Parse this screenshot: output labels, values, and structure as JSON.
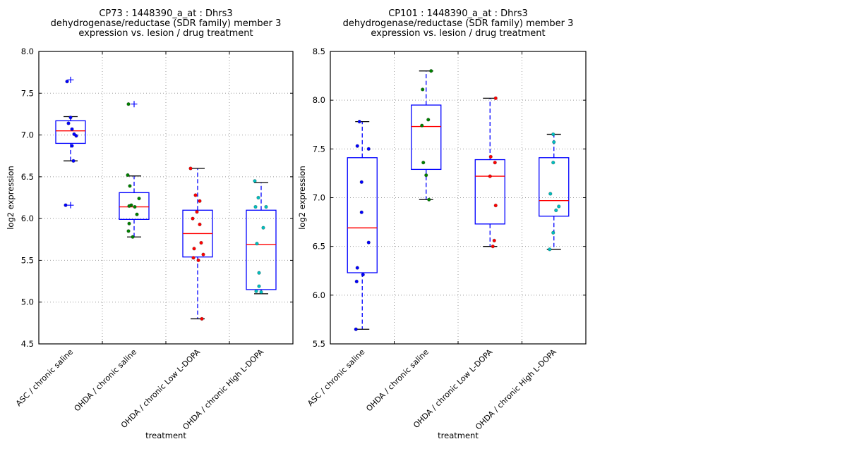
{
  "figure": {
    "background": "#ffffff",
    "kind": "boxplot-with-scatter, 2 panels"
  },
  "style": {
    "box_color": "#0000ff",
    "median_color": "#ff0000",
    "whisker_color": "#0000ff",
    "cap_color": "#000000",
    "flier_color": "#0000ff",
    "grid_color": "#999999",
    "axis_color": "#000000",
    "text_color": "#000000",
    "group_point_colors": [
      "#0000ff",
      "#008000",
      "#ff0000",
      "#00bfbf"
    ]
  },
  "chart_data": [
    {
      "type": "boxplot-scatter",
      "name": "CP73",
      "title_lines": [
        "CP73 : 1448390_a_at : Dhrs3",
        "dehydrogenase/reductase (SDR family) member 3",
        "expression vs. lesion / drug treatment"
      ],
      "xlabel": "treatment",
      "ylabel": "log2 expression",
      "ylim": [
        4.5,
        8.0
      ],
      "ytick_step": 0.5,
      "grid": true,
      "categories": [
        "ASC / chronic saline",
        "OHDA / chronic saline",
        "OHDA / chronic Low L-DOPA",
        "OHDA / chronic High L-DOPA"
      ],
      "groups": [
        {
          "label": "ASC / chronic saline",
          "point_color": "#0000ff",
          "points": [
            [
              7.64,
              -5
            ],
            [
              7.21,
              0
            ],
            [
              7.14,
              -3
            ],
            [
              7.07,
              2
            ],
            [
              7.01,
              5
            ],
            [
              6.99,
              8
            ],
            [
              6.87,
              2
            ],
            [
              6.69,
              4
            ],
            [
              6.16,
              -7
            ]
          ],
          "box": {
            "q1": 6.9,
            "median": 7.05,
            "q3": 7.17,
            "whisker_low": 6.69,
            "whisker_high": 7.22
          },
          "fliers": [
            7.66,
            6.16
          ]
        },
        {
          "label": "OHDA / chronic saline",
          "point_color": "#008000",
          "points": [
            [
              7.37,
              -8
            ],
            [
              6.52,
              -9
            ],
            [
              6.39,
              -6
            ],
            [
              6.24,
              7
            ],
            [
              6.16,
              -4
            ],
            [
              6.15,
              -7
            ],
            [
              6.14,
              1
            ],
            [
              6.05,
              4
            ],
            [
              5.94,
              -7
            ],
            [
              5.85,
              -8
            ],
            [
              5.78,
              -2
            ]
          ],
          "box": {
            "q1": 5.99,
            "median": 6.14,
            "q3": 6.31,
            "whisker_low": 5.78,
            "whisker_high": 6.51
          },
          "fliers": [
            7.37
          ]
        },
        {
          "label": "OHDA / chronic Low L-DOPA",
          "point_color": "#ff0000",
          "points": [
            [
              6.6,
              -10
            ],
            [
              6.28,
              -3
            ],
            [
              6.21,
              3
            ],
            [
              6.08,
              -1
            ],
            [
              6.0,
              -7
            ],
            [
              5.93,
              3
            ],
            [
              5.71,
              5
            ],
            [
              5.64,
              -5
            ],
            [
              5.57,
              8
            ],
            [
              5.53,
              -6
            ],
            [
              5.5,
              1
            ],
            [
              4.8,
              6
            ]
          ],
          "box": {
            "q1": 5.54,
            "median": 5.82,
            "q3": 6.1,
            "whisker_low": 4.8,
            "whisker_high": 6.6
          },
          "fliers": []
        },
        {
          "label": "OHDA / chronic High L-DOPA",
          "point_color": "#00bfbf",
          "points": [
            [
              6.45,
              -9
            ],
            [
              6.25,
              -4
            ],
            [
              6.14,
              -8
            ],
            [
              6.14,
              7
            ],
            [
              5.89,
              3
            ],
            [
              5.7,
              -6
            ],
            [
              5.35,
              -3
            ],
            [
              5.19,
              -3
            ],
            [
              5.13,
              -7
            ],
            [
              5.12,
              0
            ]
          ],
          "box": {
            "q1": 5.15,
            "median": 5.69,
            "q3": 6.1,
            "whisker_low": 5.1,
            "whisker_high": 6.43
          },
          "fliers": []
        }
      ]
    },
    {
      "type": "boxplot-scatter",
      "name": "CP101",
      "title_lines": [
        "CP101 : 1448390_a_at : Dhrs3",
        "dehydrogenase/reductase (SDR family) member 3",
        "expression vs. lesion / drug treatment"
      ],
      "xlabel": "treatment",
      "ylabel": "log2 expression",
      "ylim": [
        5.5,
        8.5
      ],
      "ytick_step": 0.5,
      "grid": true,
      "categories": [
        "ASC / chronic saline",
        "OHDA / chronic saline",
        "OHDA / chronic Low L-DOPA",
        "OHDA / chronic High L-DOPA"
      ],
      "groups": [
        {
          "label": "ASC / chronic saline",
          "point_color": "#0000ff",
          "points": [
            [
              7.78,
              -4
            ],
            [
              7.53,
              -7
            ],
            [
              7.5,
              9
            ],
            [
              7.16,
              -1
            ],
            [
              6.85,
              -1
            ],
            [
              6.54,
              9
            ],
            [
              6.28,
              -7
            ],
            [
              6.21,
              1
            ],
            [
              6.14,
              -8
            ],
            [
              5.65,
              -9
            ]
          ],
          "box": {
            "q1": 6.23,
            "median": 6.69,
            "q3": 7.41,
            "whisker_low": 5.65,
            "whisker_high": 7.78
          },
          "fliers": []
        },
        {
          "label": "OHDA / chronic saline",
          "point_color": "#008000",
          "points": [
            [
              8.3,
              7
            ],
            [
              8.11,
              -5
            ],
            [
              7.8,
              3
            ],
            [
              7.74,
              -6
            ],
            [
              7.36,
              -4
            ],
            [
              7.23,
              0
            ],
            [
              6.98,
              4
            ]
          ],
          "box": {
            "q1": 7.29,
            "median": 7.73,
            "q3": 7.95,
            "whisker_low": 6.98,
            "whisker_high": 8.3
          },
          "fliers": []
        },
        {
          "label": "OHDA / chronic Low L-DOPA",
          "point_color": "#ff0000",
          "points": [
            [
              8.02,
              8
            ],
            [
              7.42,
              1
            ],
            [
              7.36,
              7
            ],
            [
              7.22,
              0
            ],
            [
              6.92,
              8
            ],
            [
              6.56,
              6
            ],
            [
              6.5,
              4
            ]
          ],
          "box": {
            "q1": 6.73,
            "median": 7.22,
            "q3": 7.39,
            "whisker_low": 6.5,
            "whisker_high": 8.02
          },
          "fliers": []
        },
        {
          "label": "OHDA / chronic High L-DOPA",
          "point_color": "#00bfbf",
          "points": [
            [
              7.65,
              -1
            ],
            [
              7.57,
              0
            ],
            [
              7.36,
              -1
            ],
            [
              7.04,
              -5
            ],
            [
              6.91,
              7
            ],
            [
              6.87,
              3
            ],
            [
              6.64,
              -1
            ],
            [
              6.47,
              -6
            ]
          ],
          "box": {
            "q1": 6.81,
            "median": 6.97,
            "q3": 7.41,
            "whisker_low": 6.47,
            "whisker_high": 7.65
          },
          "fliers": []
        }
      ]
    }
  ]
}
